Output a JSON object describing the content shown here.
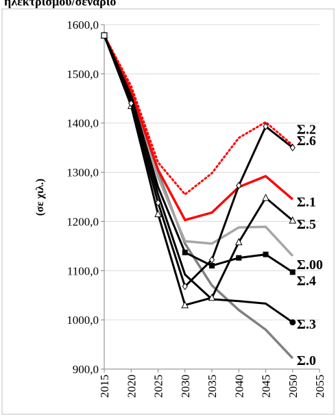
{
  "header": {
    "partial_text": "ηλεκτρισμού/σενάριο"
  },
  "chart_data": {
    "type": "line",
    "title": "",
    "xlabel": "",
    "ylabel": "(σε χιλ.)",
    "x": [
      2015,
      2020,
      2025,
      2030,
      2035,
      2040,
      2045,
      2050
    ],
    "xticks": [
      "2015",
      "2020",
      "2025",
      "2030",
      "2035",
      "2040",
      "2045",
      "2050",
      "2055"
    ],
    "xlim": [
      2015,
      2055
    ],
    "ylim": [
      900,
      1600
    ],
    "yticks": [
      "900,0",
      "1000,0",
      "1100,0",
      "1200,0",
      "1300,0",
      "1400,0",
      "1500,0",
      "1600,0"
    ],
    "grid": "horizontal",
    "legend": "inline labels at line ends (right)",
    "series": [
      {
        "name": "Σ.0",
        "color": "#808080",
        "style": "solid",
        "marker": "none",
        "values": [
          1578,
          1450,
          1300,
          1155,
          1070,
          1020,
          980,
          922
        ]
      },
      {
        "name": "Σ.00",
        "color": "#a6a6a6",
        "style": "solid",
        "marker": "none",
        "values": [
          1578,
          1445,
          1290,
          1160,
          1155,
          1188,
          1189,
          1130
        ]
      },
      {
        "name": "Σ.1",
        "color": "#ff0000",
        "style": "solid",
        "marker": "none",
        "values": [
          1578,
          1465,
          1305,
          1203,
          1218,
          1270,
          1292,
          1245
        ]
      },
      {
        "name": "Σ.2",
        "color": "#ff0000",
        "style": "dotted",
        "marker": "none",
        "values": [
          1578,
          1475,
          1320,
          1255,
          1298,
          1370,
          1402,
          1355
        ]
      },
      {
        "name": "Σ.3",
        "color": "#000000",
        "style": "solid",
        "marker": "circle",
        "values": [
          1578,
          1450,
          1255,
          1092,
          1042,
          1038,
          1033,
          995
        ]
      },
      {
        "name": "Σ.4",
        "color": "#000000",
        "style": "solid",
        "marker": "square",
        "values": [
          1578,
          1455,
          1270,
          1137,
          1110,
          1126,
          1133,
          1097
        ]
      },
      {
        "name": "Σ.5",
        "color": "#000000",
        "style": "solid",
        "marker": "triangle",
        "values": [
          1578,
          1435,
          1215,
          1030,
          1045,
          1158,
          1248,
          1202
        ]
      },
      {
        "name": "Σ.6",
        "color": "#000000",
        "style": "solid",
        "marker": "diamond",
        "values": [
          1578,
          1440,
          1238,
          1068,
          1122,
          1273,
          1393,
          1350
        ]
      }
    ]
  }
}
